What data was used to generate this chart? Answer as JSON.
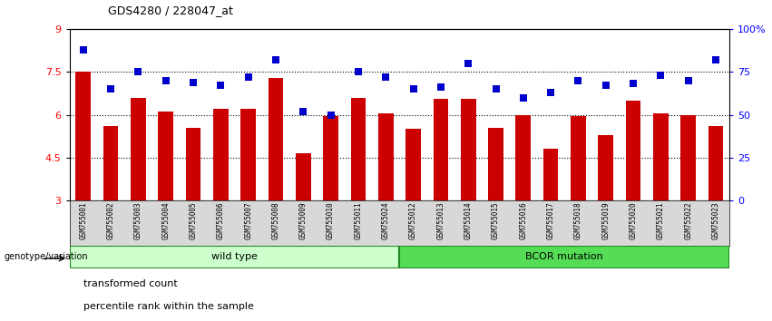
{
  "title": "GDS4280 / 228047_at",
  "samples": [
    "GSM755001",
    "GSM755002",
    "GSM755003",
    "GSM755004",
    "GSM755005",
    "GSM755006",
    "GSM755007",
    "GSM755008",
    "GSM755009",
    "GSM755010",
    "GSM755011",
    "GSM755024",
    "GSM755012",
    "GSM755013",
    "GSM755014",
    "GSM755015",
    "GSM755016",
    "GSM755017",
    "GSM755018",
    "GSM755019",
    "GSM755020",
    "GSM755021",
    "GSM755022",
    "GSM755023"
  ],
  "bar_values": [
    7.5,
    5.6,
    6.6,
    6.1,
    5.55,
    6.2,
    6.2,
    7.3,
    4.65,
    5.95,
    6.6,
    6.05,
    5.5,
    6.55,
    6.55,
    5.55,
    6.0,
    4.8,
    5.95,
    5.3,
    6.5,
    6.05,
    6.0,
    5.6
  ],
  "percentile_values": [
    88,
    65,
    75,
    70,
    69,
    67,
    72,
    82,
    52,
    50,
    75,
    72,
    65,
    66,
    80,
    65,
    60,
    63,
    70,
    67,
    68,
    73,
    70,
    82
  ],
  "bar_color": "#cc0000",
  "dot_color": "#0000cc",
  "ylim_left": [
    3,
    9
  ],
  "ylim_right": [
    0,
    100
  ],
  "yticks_left": [
    3,
    4.5,
    6,
    7.5,
    9
  ],
  "ytick_labels_left": [
    "3",
    "4.5",
    "6",
    "7.5",
    "9"
  ],
  "yticks_right": [
    0,
    25,
    50,
    75,
    100
  ],
  "ytick_labels_right": [
    "0",
    "25",
    "50",
    "75",
    "100%"
  ],
  "wild_type_count": 12,
  "wild_type_label": "wild type",
  "bcor_label": "BCOR mutation",
  "group_label": "genotype/variation",
  "legend_bar": "transformed count",
  "legend_dot": "percentile rank within the sample",
  "wild_type_bg": "#ccffcc",
  "bcor_bg": "#55dd55",
  "bar_width": 0.55,
  "dot_size": 30
}
